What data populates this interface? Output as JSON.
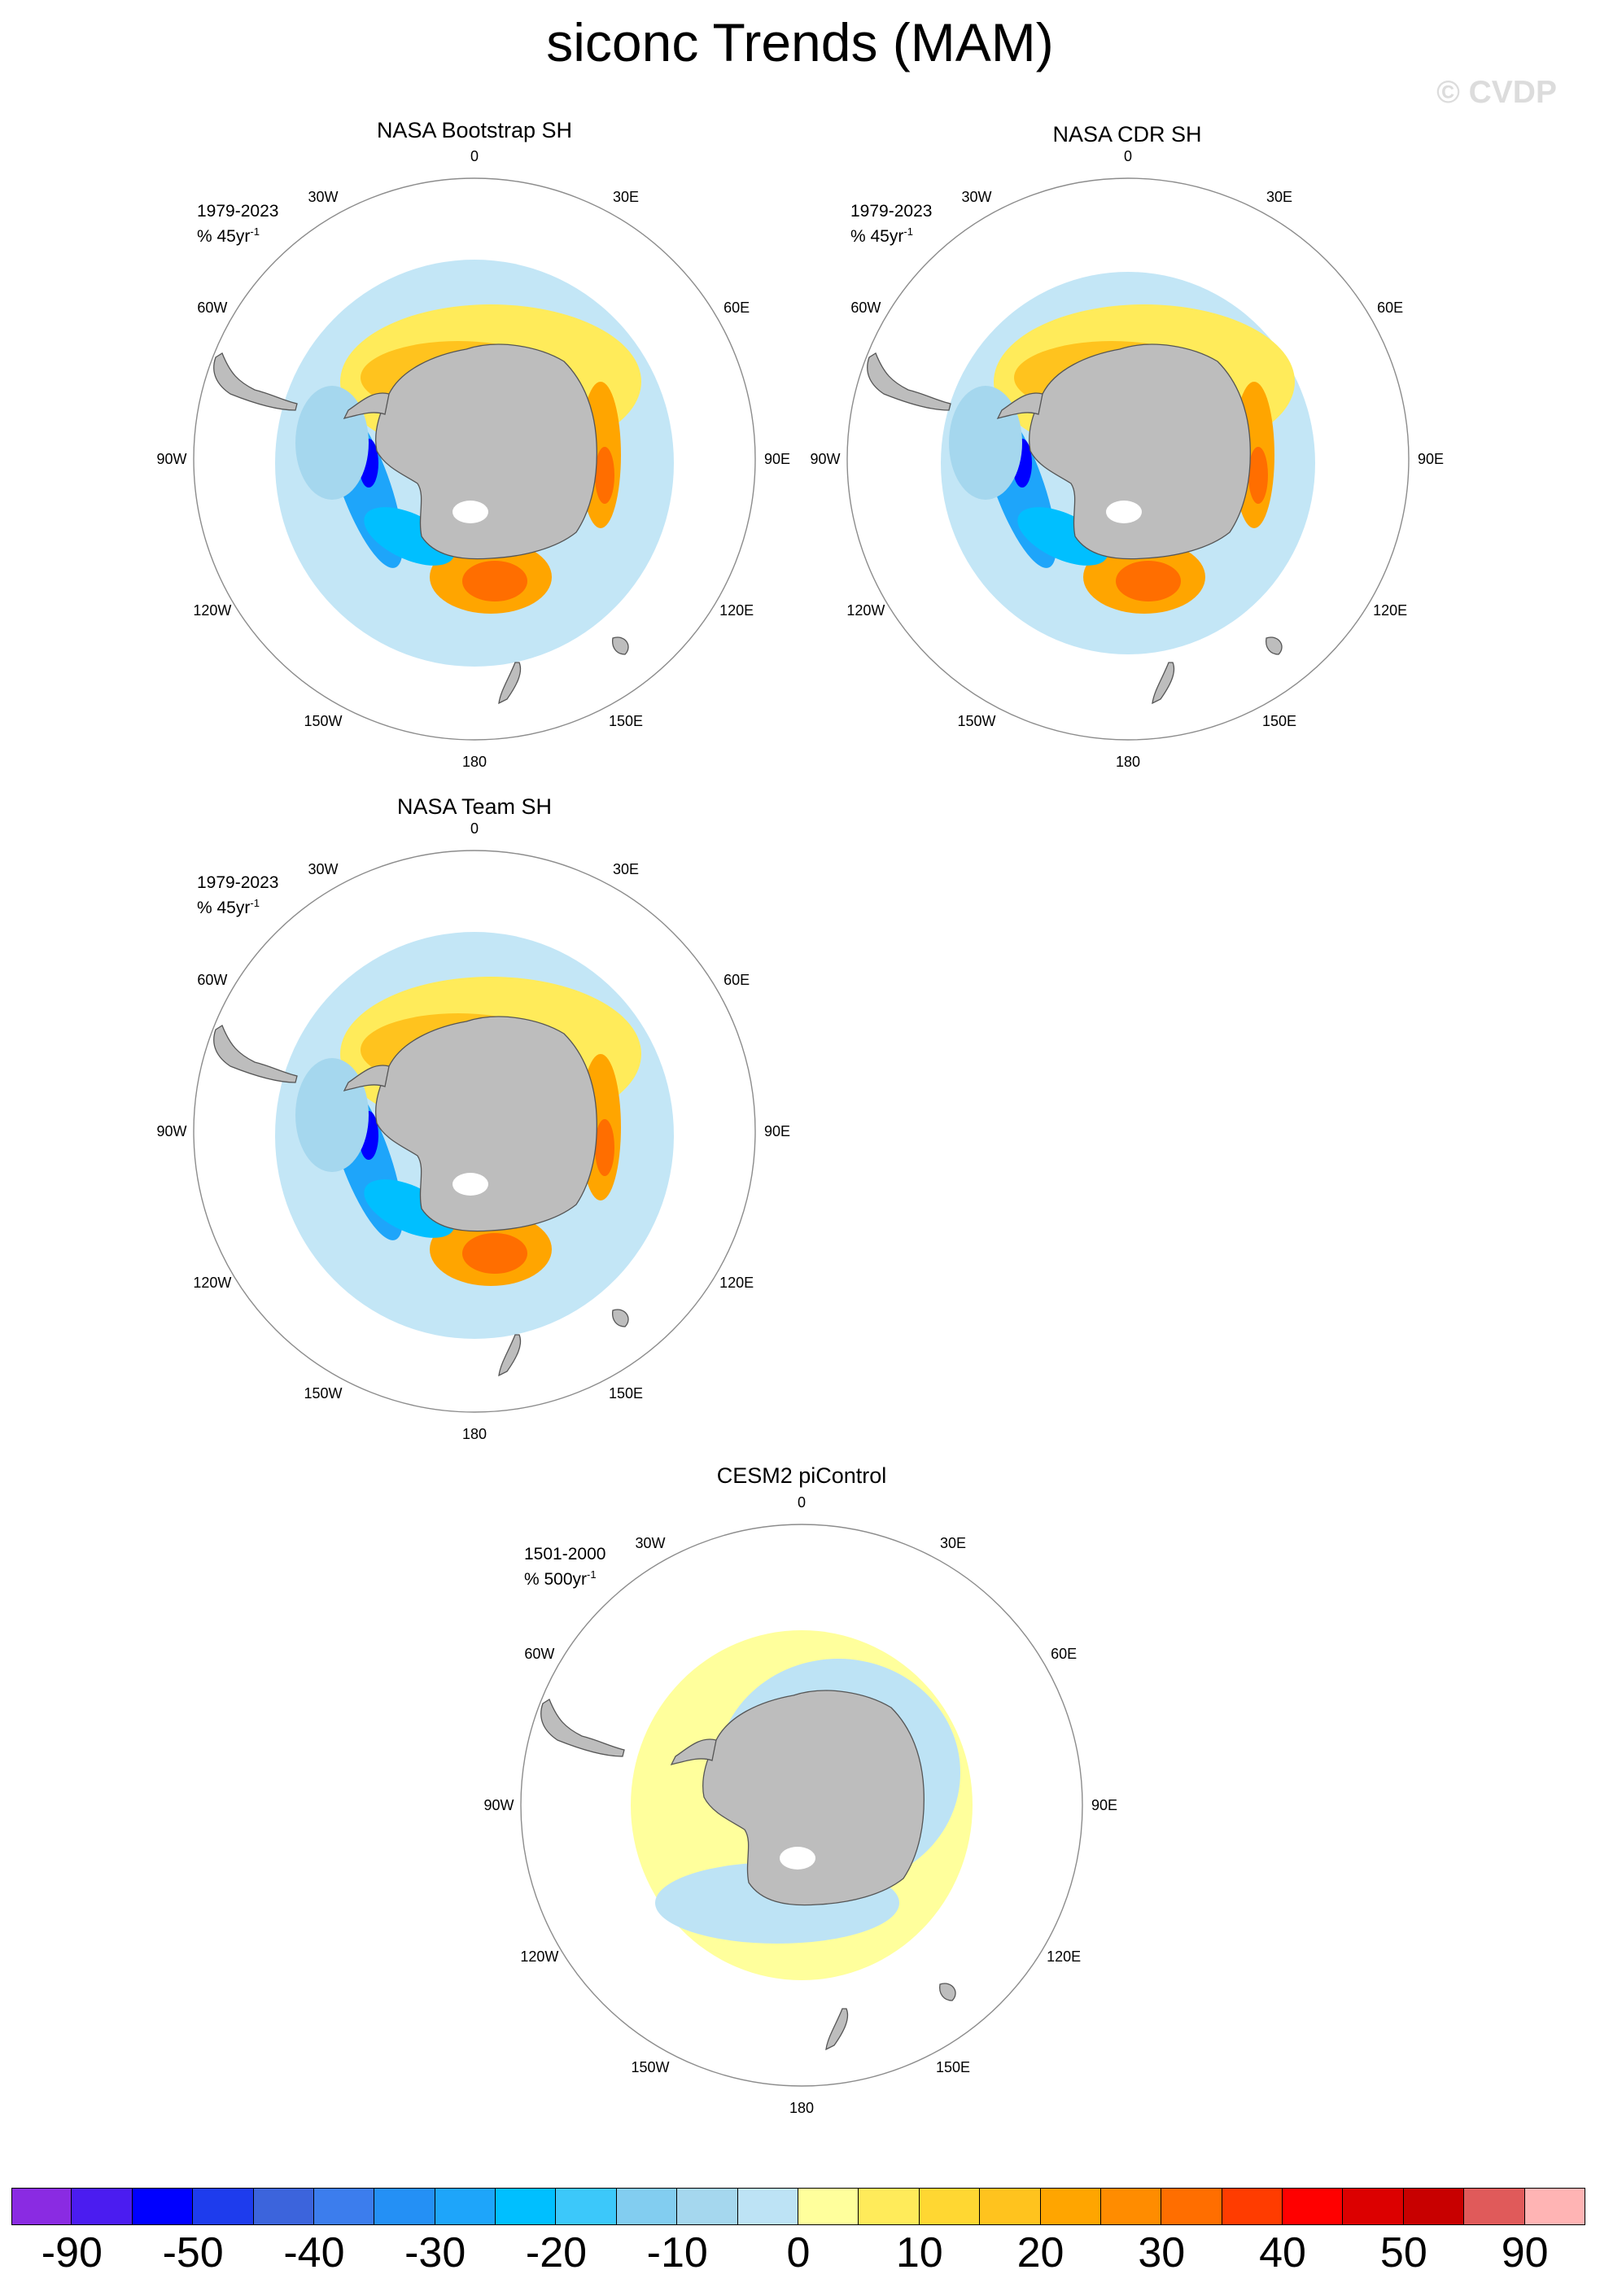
{
  "title": "siconc Trends (MAM)",
  "watermark": "© CVDP",
  "lon_labels": [
    "0",
    "30E",
    "60E",
    "90E",
    "120E",
    "150E",
    "180",
    "150W",
    "120W",
    "90W",
    "60W",
    "30W"
  ],
  "panels": [
    {
      "title": "NASA Bootstrap SH",
      "period": "1979-2023",
      "units_prefix": "% 45yr",
      "units_exp": "-1"
    },
    {
      "title": "NASA CDR SH",
      "period": "1979-2023",
      "units_prefix": "% 45yr",
      "units_exp": "-1"
    },
    {
      "title": "NASA Team SH",
      "period": "1979-2023",
      "units_prefix": "% 45yr",
      "units_exp": "-1"
    },
    {
      "title": "CESM2 piControl",
      "period": "1501-2000",
      "units_prefix": "% 500yr",
      "units_exp": "-1"
    }
  ],
  "colorbar": {
    "colors": [
      "#8a2be2",
      "#4b1cf0",
      "#0000ff",
      "#1e3ced",
      "#3c64dc",
      "#3c7ded",
      "#2490f5",
      "#1ea5fa",
      "#00bfff",
      "#3cc8fa",
      "#82cdf0",
      "#a5d7ee",
      "#bde3f5",
      "#ffff9c",
      "#ffeb5a",
      "#ffd732",
      "#ffc31e",
      "#ffa500",
      "#ff8c00",
      "#ff6e00",
      "#ff3c00",
      "#ff0000",
      "#dc0000",
      "#c80000",
      "#e05a5a",
      "#ffb4b4"
    ],
    "tick_labels": [
      "-90",
      "-50",
      "-40",
      "-30",
      "-20",
      "-10",
      "0",
      "10",
      "20",
      "30",
      "40",
      "50",
      "90"
    ]
  },
  "colors": {
    "land": "#bdbdbd",
    "land_edge": "#555555",
    "circle": "#8c8c8c"
  }
}
